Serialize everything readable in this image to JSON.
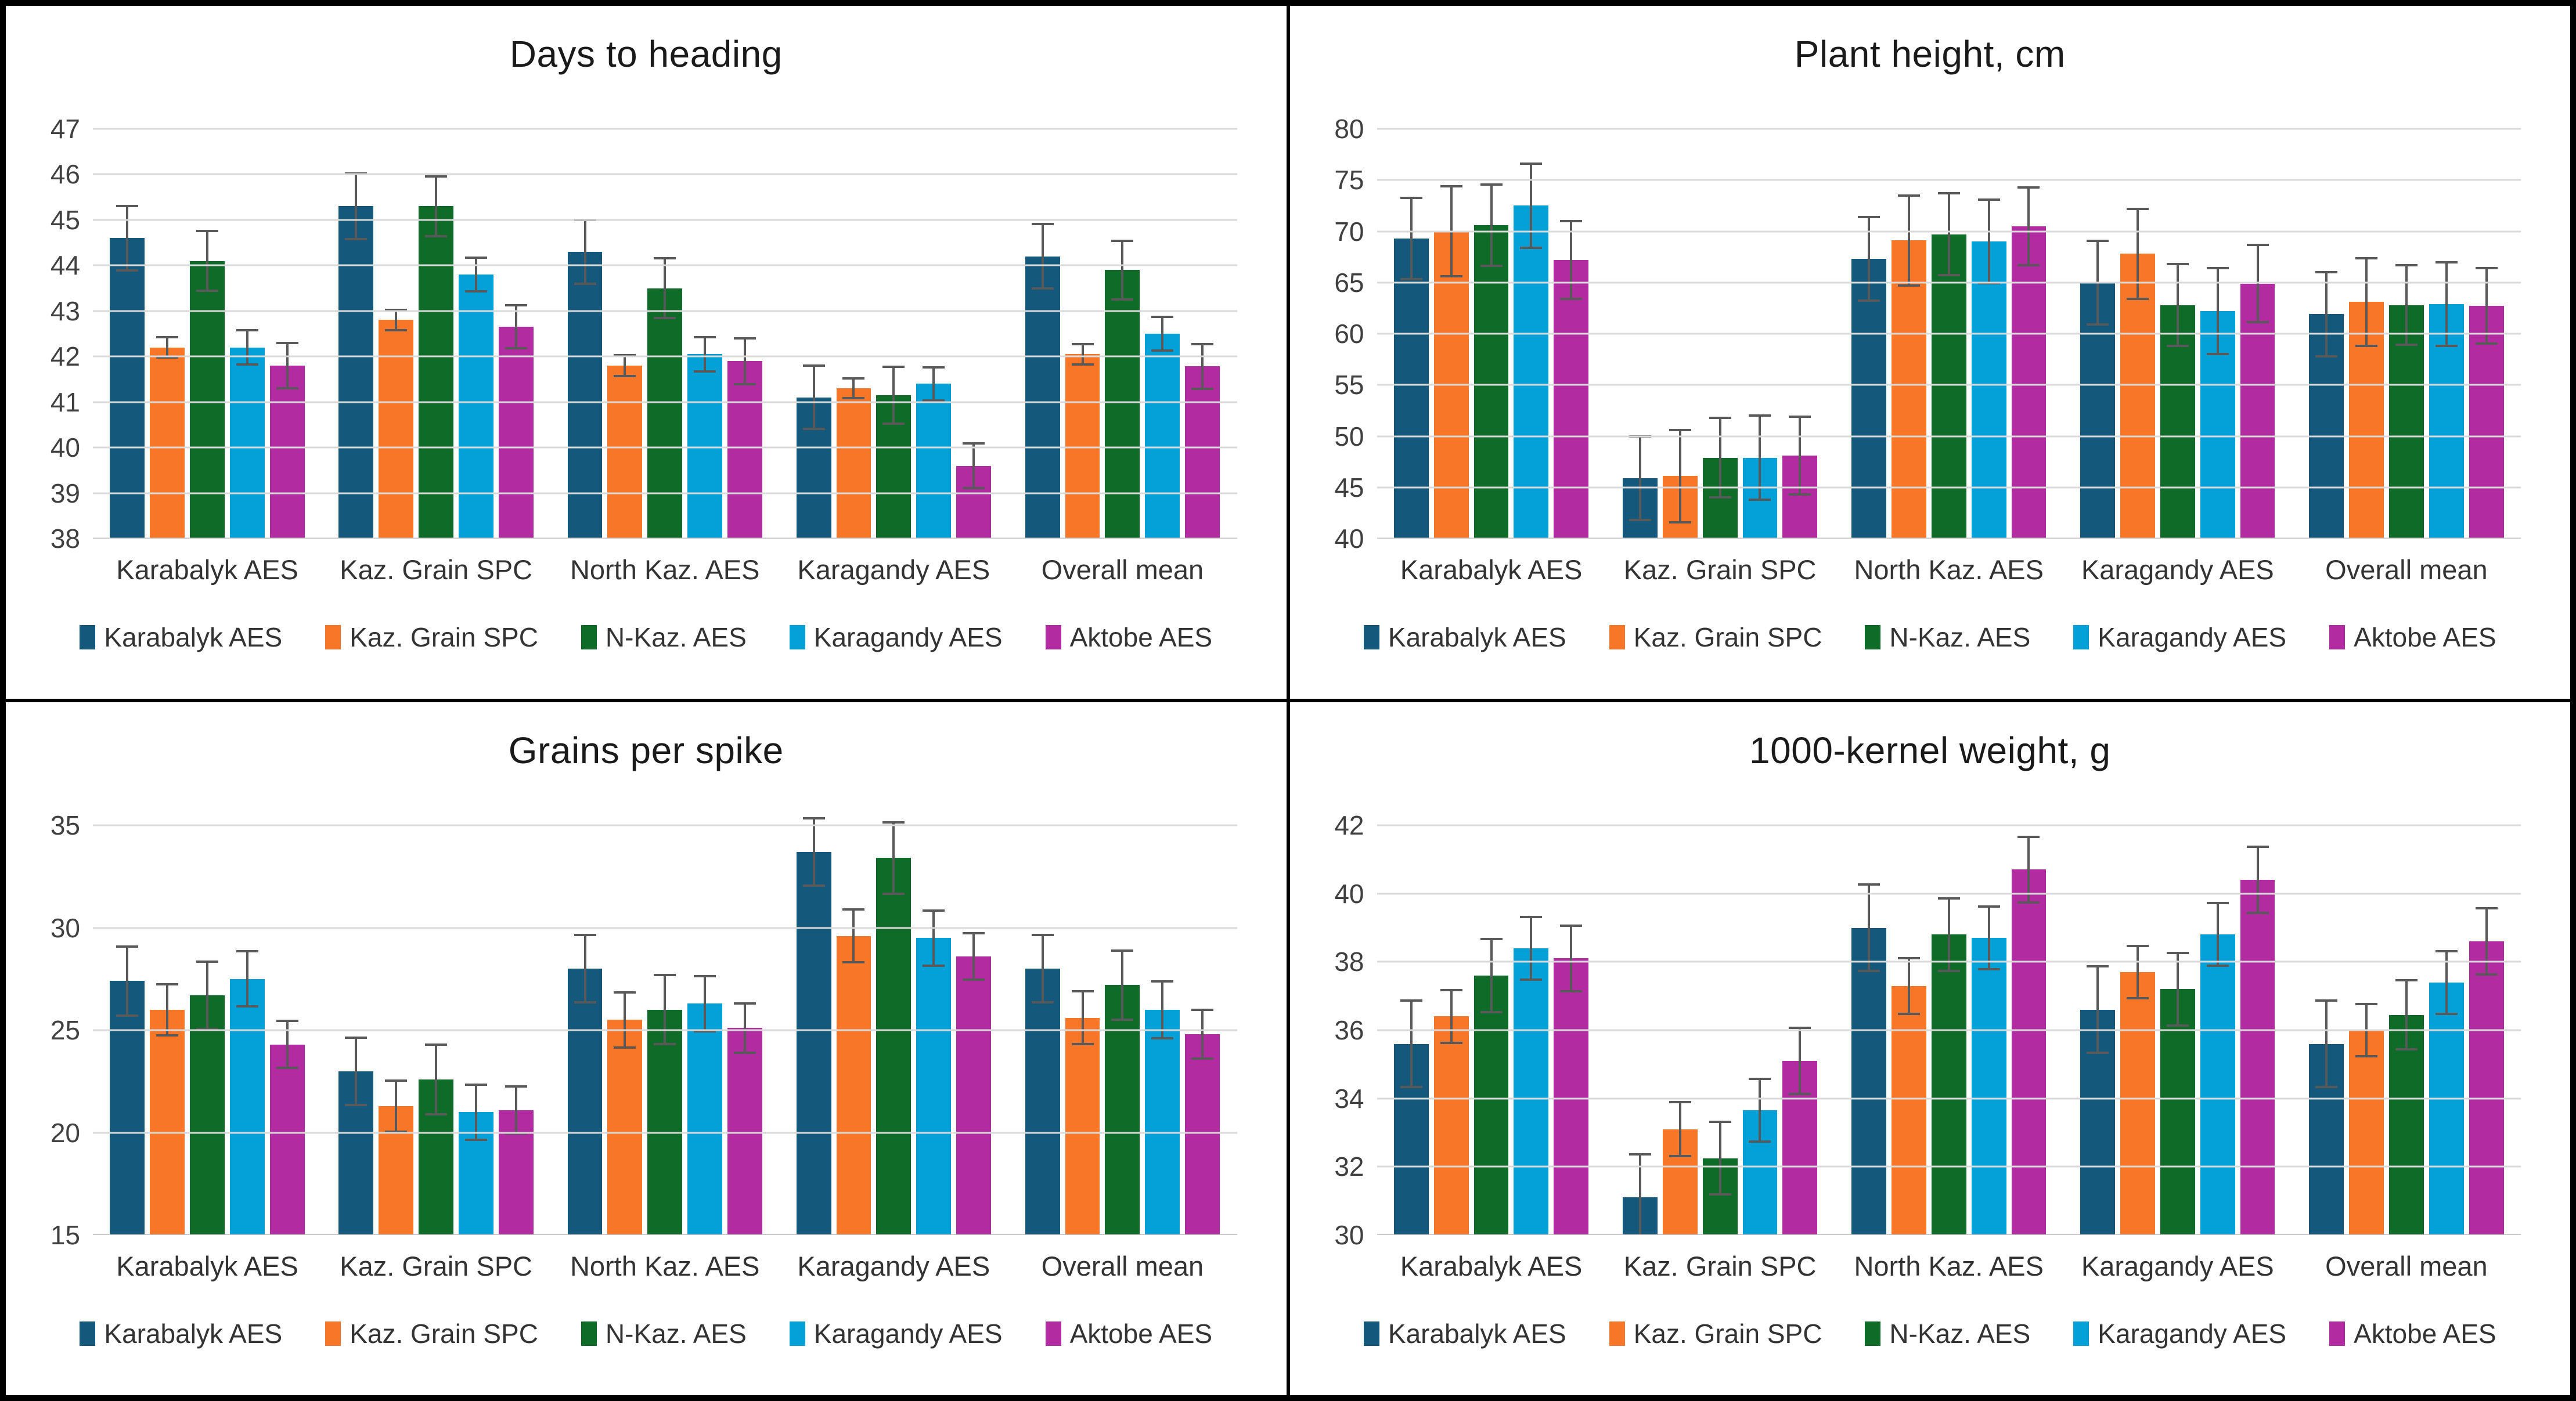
{
  "figure": {
    "kind": "2x2 grid of grouped bar charts with error bars"
  },
  "style": {
    "series_colors": [
      "#14597C",
      "#F87628",
      "#0E6B28",
      "#04A1D9",
      "#B32BA0"
    ],
    "error_bar_color": "#595959",
    "gridline_color": "#D9D9D9",
    "axis_line_color": "#BFBFBF",
    "panel_border_color": "#000000"
  },
  "chart_data": [
    {
      "type": "bar",
      "title": "Days to heading",
      "xlabel": "",
      "ylabel": "",
      "ylim": [
        38,
        47
      ],
      "ytick_step": 1,
      "grid": true,
      "legend_position": "bottom",
      "categories": [
        "Karabalyk AES",
        "Kaz. Grain SPC",
        "North Kaz. AES",
        "Karagandy AES",
        "Overall mean"
      ],
      "series": [
        {
          "name": "Karabalyk AES",
          "color": "#14597C",
          "values": [
            44.6,
            45.3,
            44.3,
            41.1,
            44.2
          ],
          "errors": [
            0.73,
            0.75,
            0.73,
            0.72,
            0.73
          ]
        },
        {
          "name": "Kaz. Grain SPC",
          "color": "#F87628",
          "values": [
            42.2,
            42.8,
            41.8,
            41.3,
            42.05
          ],
          "errors": [
            0.25,
            0.25,
            0.25,
            0.24,
            0.25
          ]
        },
        {
          "name": "N-Kaz. AES",
          "color": "#0E6B28",
          "values": [
            44.1,
            45.3,
            43.5,
            41.15,
            43.9
          ],
          "errors": [
            0.68,
            0.68,
            0.68,
            0.65,
            0.67
          ]
        },
        {
          "name": "Karagandy AES",
          "color": "#04A1D9",
          "values": [
            42.2,
            43.8,
            42.05,
            41.4,
            42.5
          ],
          "errors": [
            0.4,
            0.4,
            0.4,
            0.39,
            0.4
          ]
        },
        {
          "name": "Aktobe AES",
          "color": "#B32BA0",
          "values": [
            41.8,
            42.65,
            41.9,
            39.6,
            41.78
          ],
          "errors": [
            0.52,
            0.5,
            0.53,
            0.52,
            0.52
          ]
        }
      ]
    },
    {
      "type": "bar",
      "title": "Plant height, cm",
      "xlabel": "",
      "ylabel": "",
      "ylim": [
        40,
        80
      ],
      "ytick_step": 5,
      "grid": true,
      "legend_position": "bottom",
      "categories": [
        "Karabalyk AES",
        "Kaz. Grain SPC",
        "North Kaz. AES",
        "Karagandy AES",
        "Overall mean"
      ],
      "series": [
        {
          "name": "Karabalyk AES",
          "color": "#14597C",
          "values": [
            69.3,
            45.9,
            67.3,
            65.0,
            61.9
          ],
          "errors": [
            4.1,
            4.2,
            4.2,
            4.2,
            4.2
          ]
        },
        {
          "name": "Kaz. Grain SPC",
          "color": "#F87628",
          "values": [
            70.0,
            46.1,
            69.1,
            67.8,
            63.1
          ],
          "errors": [
            4.5,
            4.6,
            4.5,
            4.5,
            4.4
          ]
        },
        {
          "name": "N-Kaz. AES",
          "color": "#0E6B28",
          "values": [
            70.6,
            47.9,
            69.7,
            62.8,
            62.8
          ],
          "errors": [
            4.1,
            4.0,
            4.1,
            4.1,
            4.0
          ]
        },
        {
          "name": "Karagandy AES",
          "color": "#04A1D9",
          "values": [
            72.5,
            47.9,
            69.0,
            62.2,
            62.9
          ],
          "errors": [
            4.2,
            4.2,
            4.2,
            4.3,
            4.2
          ]
        },
        {
          "name": "Aktobe AES",
          "color": "#B32BA0",
          "values": [
            67.2,
            48.1,
            70.5,
            64.9,
            62.7
          ],
          "errors": [
            3.9,
            3.9,
            3.9,
            3.9,
            3.8
          ]
        }
      ]
    },
    {
      "type": "bar",
      "title": "Grains per spike",
      "xlabel": "",
      "ylabel": "",
      "ylim": [
        15,
        35
      ],
      "ytick_step": 5,
      "grid": true,
      "legend_position": "bottom",
      "categories": [
        "Karabalyk AES",
        "Kaz. Grain SPC",
        "North Kaz. AES",
        "Karagandy AES",
        "Overall mean"
      ],
      "series": [
        {
          "name": "Karabalyk AES",
          "color": "#14597C",
          "values": [
            27.4,
            23.0,
            28.0,
            33.7,
            28.0
          ],
          "errors": [
            1.75,
            1.7,
            1.7,
            1.7,
            1.7
          ]
        },
        {
          "name": "Kaz. Grain SPC",
          "color": "#F87628",
          "values": [
            26.0,
            21.3,
            25.5,
            29.6,
            25.6
          ],
          "errors": [
            1.3,
            1.3,
            1.4,
            1.35,
            1.35
          ]
        },
        {
          "name": "N-Kaz. AES",
          "color": "#0E6B28",
          "values": [
            26.7,
            22.6,
            26.0,
            33.4,
            27.2
          ],
          "errors": [
            1.7,
            1.75,
            1.75,
            1.8,
            1.75
          ]
        },
        {
          "name": "Karagandy AES",
          "color": "#04A1D9",
          "values": [
            27.5,
            21.0,
            26.3,
            29.5,
            26.0
          ],
          "errors": [
            1.4,
            1.4,
            1.4,
            1.4,
            1.45
          ]
        },
        {
          "name": "Aktobe AES",
          "color": "#B32BA0",
          "values": [
            24.3,
            21.1,
            25.1,
            28.6,
            24.8
          ],
          "errors": [
            1.2,
            1.2,
            1.25,
            1.2,
            1.25
          ]
        }
      ]
    },
    {
      "type": "bar",
      "title": "1000-kernel weight, g",
      "xlabel": "",
      "ylabel": "",
      "ylim": [
        30,
        42
      ],
      "ytick_step": 2,
      "grid": true,
      "legend_position": "bottom",
      "categories": [
        "Karabalyk AES",
        "Kaz. Grain SPC",
        "North Kaz. AES",
        "Karagandy AES",
        "Overall mean"
      ],
      "series": [
        {
          "name": "Karabalyk AES",
          "color": "#14597C",
          "values": [
            35.6,
            31.1,
            39.0,
            36.6,
            35.6
          ],
          "errors": [
            1.3,
            1.3,
            1.3,
            1.3,
            1.3
          ]
        },
        {
          "name": "Kaz. Grain SPC",
          "color": "#F87628",
          "values": [
            36.4,
            33.1,
            37.3,
            37.7,
            36.0
          ],
          "errors": [
            0.8,
            0.82,
            0.85,
            0.8,
            0.8
          ]
        },
        {
          "name": "N-Kaz. AES",
          "color": "#0E6B28",
          "values": [
            37.6,
            32.25,
            38.8,
            37.2,
            36.45
          ],
          "errors": [
            1.1,
            1.1,
            1.1,
            1.1,
            1.05
          ]
        },
        {
          "name": "Karagandy AES",
          "color": "#04A1D9",
          "values": [
            38.4,
            33.65,
            38.7,
            38.8,
            37.4
          ],
          "errors": [
            0.95,
            0.95,
            0.95,
            0.95,
            0.95
          ]
        },
        {
          "name": "Aktobe AES",
          "color": "#B32BA0",
          "values": [
            38.1,
            35.1,
            40.7,
            40.4,
            38.6
          ],
          "errors": [
            1.0,
            1.0,
            1.0,
            1.0,
            1.0
          ]
        }
      ]
    }
  ]
}
